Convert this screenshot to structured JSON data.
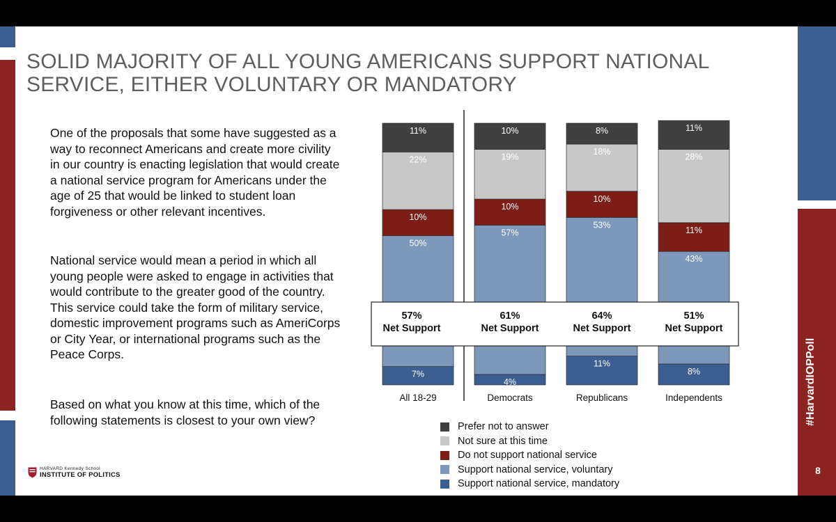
{
  "title": "SOLID MAJORITY OF ALL YOUNG AMERICANS SUPPORT NATIONAL SERVICE, EITHER VOLUNTARY OR MANDATORY",
  "body": {
    "p1": "One of the proposals that some have suggested as a way to reconnect Americans and create more civility in our country is enacting legislation that would create a national service program for Americans under the age of 25 that would be linked to student loan forgiveness or other relevant incentives.",
    "p2": "National service would mean a period in which all young people were asked to engage in activities that would contribute to the greater good of the country.  This service could take the form of military service, domestic improvement programs such as AmeriCorps or City Year, or international programs such as the Peace Corps.",
    "p3": "Based on what you know at this time, which of the following statements is closest to your own view?"
  },
  "logo": {
    "top": "HARVARD Kennedy School",
    "bottom": "INSTITUTE OF POLITICS"
  },
  "hashtag": "#HarvardIOPPoll",
  "page_number": "8",
  "colors": {
    "blue_band": "#3b5f93",
    "red_band": "#8c2321",
    "prefer_not": "#404040",
    "not_sure": "#c8c8c8",
    "do_not_support": "#7c1d16",
    "voluntary": "#7d98bb",
    "mandatory": "#3a5f90"
  },
  "chart_data": {
    "type": "bar",
    "stacked": true,
    "categories": [
      "All 18-29",
      "Democrats",
      "Republicans",
      "Independents"
    ],
    "series": [
      {
        "name": "Support national service, mandatory",
        "values": [
          7,
          4,
          11,
          8
        ]
      },
      {
        "name": "Support national service, voluntary",
        "values": [
          50,
          57,
          53,
          43
        ]
      },
      {
        "name": "Do not support national service",
        "values": [
          10,
          10,
          10,
          11
        ]
      },
      {
        "name": "Not sure at this time",
        "values": [
          22,
          19,
          18,
          28
        ]
      },
      {
        "name": "Prefer not to answer",
        "values": [
          11,
          10,
          8,
          11
        ]
      }
    ],
    "value_labels": {
      "mandatory": [
        "7%",
        "4%",
        "11%",
        "8%"
      ],
      "voluntary": [
        "50%",
        "57%",
        "53%",
        "43%"
      ],
      "do_not_support": [
        "10%",
        "10%",
        "10%",
        "11%"
      ],
      "not_sure": [
        "22%",
        "19%",
        "18%",
        "28%"
      ],
      "prefer_not": [
        "11%",
        "10%",
        "8%",
        "11%"
      ]
    },
    "net_support": {
      "values": [
        57,
        61,
        64,
        51
      ],
      "value_labels": [
        "57%",
        "61%",
        "64%",
        "51%"
      ],
      "label": "Net Support"
    },
    "legend": [
      "Prefer not to answer",
      "Not sure at this time",
      "Do not support national service",
      "Support national service, voluntary",
      "Support national service, mandatory"
    ],
    "ylim": [
      0,
      100
    ]
  }
}
